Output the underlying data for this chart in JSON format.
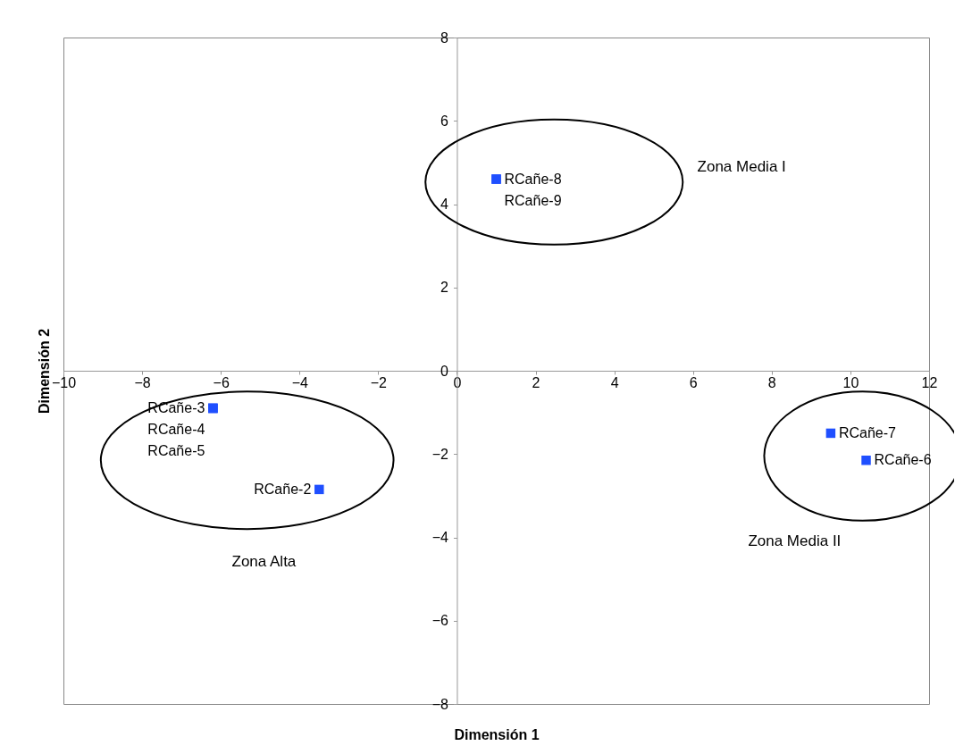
{
  "chart_data": {
    "type": "scatter",
    "xlabel": "Dimensión 1",
    "ylabel": "Dimensión 2",
    "x": [
      -3.5,
      -6.2,
      -6.2,
      -6.2,
      10.4,
      9.5,
      1.0,
      1.0
    ],
    "series": [
      {
        "color": "#1f4fff",
        "values": [
          -2.85,
          -0.9,
          -0.9,
          -0.9,
          -2.15,
          -1.5,
          4.6,
          4.6
        ],
        "value_labels": [
          "RCañe-2",
          "RCañe-3",
          "RCañe-4",
          "RCañe-5",
          "RCañe-6",
          "RCañe-7",
          "RCañe-8",
          "RCañe-9"
        ]
      }
    ],
    "marker": "square",
    "grid": false,
    "legend": false,
    "xlim": [
      -10,
      12
    ],
    "xticks": [
      -10,
      -8,
      -6,
      -4,
      -2,
      0,
      2,
      4,
      6,
      8,
      10,
      12
    ],
    "ylim": [
      -8,
      8
    ],
    "yticks": [
      -8,
      -6,
      -4,
      -2,
      0,
      2,
      4,
      6,
      8
    ],
    "annotations": [
      "Zona Media I",
      "Zona Alta",
      "Zona Media II"
    ]
  }
}
